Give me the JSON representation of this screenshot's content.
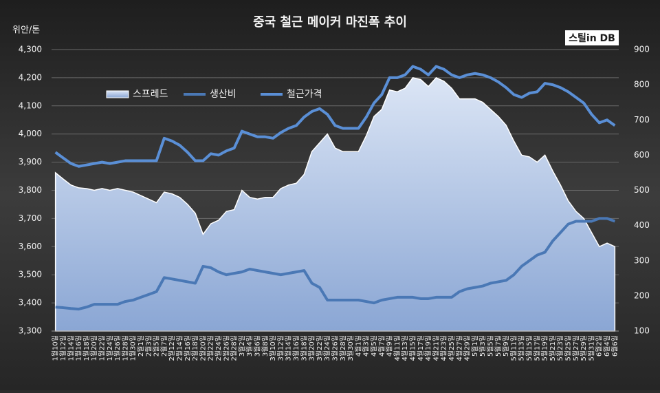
{
  "chart_data": {
    "type": "line",
    "title": "중국 철근 메이커 마진폭 추이",
    "y_axis_label": "위안/톤",
    "logo": "스틸in DB",
    "categories": [
      "1월10일",
      "1월12일",
      "1월14일",
      "1월16일",
      "1월18일",
      "1월20일",
      "1월22일",
      "1월24일",
      "1월26일",
      "1월28일",
      "1월30일",
      "2월1일",
      "2월3일",
      "2월5일",
      "2월7일",
      "2월12일",
      "2월14일",
      "2월16일",
      "2월18일",
      "2월20일",
      "2월22일",
      "2월24일",
      "2월26일",
      "2월28일",
      "3월2일",
      "3월4일",
      "3월6일",
      "3월8일",
      "3월10일",
      "3월12일",
      "3월14일",
      "3월16일",
      "3월18일",
      "3월20일",
      "3월22일",
      "3월24일",
      "3월26일",
      "3월28일",
      "3월30일",
      "4월1일",
      "4월3일",
      "4월5일",
      "4월7일",
      "4월9일",
      "4월11일",
      "4월13일",
      "4월15일",
      "4월17일",
      "4월19일",
      "4월21일",
      "4월23일",
      "4월25일",
      "4월27일",
      "4월29일",
      "5월1일",
      "5월3일",
      "5월5일",
      "5월7일",
      "5월9일",
      "5월11일",
      "5월13일",
      "5월15일",
      "5월17일",
      "5월19일",
      "5월21일",
      "5월23일",
      "5월25일",
      "5월27일",
      "5월29일",
      "5월31일",
      "6월2일",
      "6월4일",
      "6월6일"
    ],
    "series": [
      {
        "name": "스프레드",
        "color": "#b4c7e7",
        "axis": "y2",
        "kind": "area",
        "values": [
          550,
          532,
          515,
          507,
          505,
          500,
          505,
          500,
          505,
          500,
          495,
          485,
          475,
          465,
          495,
          490,
          480,
          460,
          435,
          375,
          405,
          415,
          440,
          445,
          500,
          480,
          475,
          480,
          480,
          505,
          515,
          520,
          545,
          610,
          635,
          660,
          620,
          610,
          610,
          610,
          655,
          710,
          730,
          785,
          780,
          790,
          820,
          815,
          795,
          820,
          810,
          790,
          760,
          760,
          760,
          750,
          730,
          710,
          685,
          640,
          600,
          595,
          580,
          600,
          555,
          515,
          470,
          440,
          420,
          380,
          340,
          350,
          340
        ]
      },
      {
        "name": "생산비",
        "color": "#4a78b5",
        "kind": "line",
        "values": [
          3385,
          3383,
          3380,
          3378,
          3385,
          3395,
          3395,
          3395,
          3395,
          3405,
          3410,
          3420,
          3430,
          3440,
          3490,
          3485,
          3480,
          3475,
          3470,
          3530,
          3525,
          3510,
          3500,
          3505,
          3510,
          3520,
          3515,
          3510,
          3505,
          3500,
          3505,
          3510,
          3515,
          3470,
          3455,
          3410,
          3410,
          3410,
          3410,
          3410,
          3405,
          3400,
          3410,
          3415,
          3420,
          3420,
          3420,
          3415,
          3415,
          3420,
          3420,
          3420,
          3440,
          3450,
          3455,
          3460,
          3470,
          3475,
          3480,
          3500,
          3530,
          3550,
          3570,
          3580,
          3620,
          3650,
          3680,
          3690,
          3690,
          3690,
          3700,
          3700,
          3690
        ]
      },
      {
        "name": "철근가격",
        "color": "#5a8fd6",
        "kind": "line",
        "values": [
          3935,
          3915,
          3895,
          3885,
          3890,
          3895,
          3900,
          3895,
          3900,
          3905,
          3905,
          3905,
          3905,
          3905,
          3985,
          3975,
          3960,
          3935,
          3905,
          3905,
          3930,
          3925,
          3940,
          3950,
          4010,
          4000,
          3990,
          3990,
          3985,
          4005,
          4020,
          4030,
          4060,
          4080,
          4090,
          4070,
          4030,
          4020,
          4020,
          4020,
          4060,
          4110,
          4140,
          4200,
          4200,
          4210,
          4240,
          4230,
          4210,
          4240,
          4230,
          4210,
          4200,
          4210,
          4215,
          4210,
          4200,
          4185,
          4165,
          4140,
          4130,
          4145,
          4150,
          4180,
          4175,
          4165,
          4150,
          4130,
          4110,
          4070,
          4040,
          4050,
          4030
        ]
      }
    ],
    "ylim": [
      3300,
      4300
    ],
    "yticks": [
      {
        "value": 3300,
        "label": "3,300"
      },
      {
        "value": 3400,
        "label": "3,400"
      },
      {
        "value": 3500,
        "label": "3,500"
      },
      {
        "value": 3600,
        "label": "3,600"
      },
      {
        "value": 3700,
        "label": "3,700"
      },
      {
        "value": 3800,
        "label": "3,800"
      },
      {
        "value": 3900,
        "label": "3,900"
      },
      {
        "value": 4000,
        "label": "4,000"
      },
      {
        "value": 4100,
        "label": "4,100"
      },
      {
        "value": 4200,
        "label": "4,200"
      },
      {
        "value": 4300,
        "label": "4,300"
      }
    ],
    "y2lim": [
      100,
      900
    ],
    "y2ticks": [
      100,
      200,
      300,
      400,
      500,
      600,
      700,
      800,
      900
    ],
    "grid": true
  }
}
